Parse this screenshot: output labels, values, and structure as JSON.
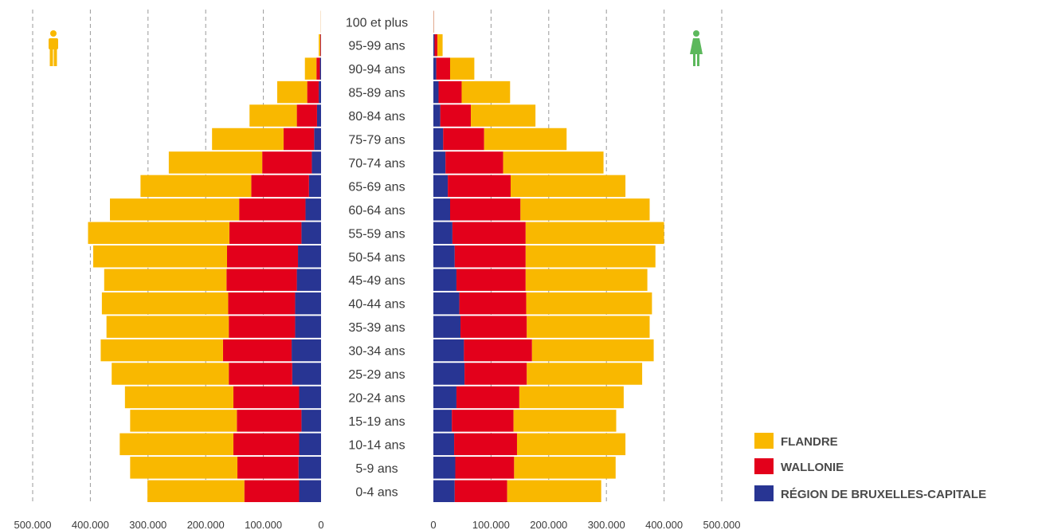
{
  "chart_data": {
    "type": "bar",
    "layout": "population-pyramid",
    "stacked": true,
    "orientation": "horizontal",
    "title": "",
    "categories": [
      "0-4 ans",
      "5-9 ans",
      "10-14 ans",
      "15-19 ans",
      "20-24 ans",
      "25-29 ans",
      "30-34 ans",
      "35-39 ans",
      "40-44 ans",
      "45-49 ans",
      "50-54 ans",
      "55-59 ans",
      "60-64 ans",
      "65-69 ans",
      "70-74 ans",
      "75-79 ans",
      "80-84 ans",
      "85-89 ans",
      "90-94 ans",
      "95-99 ans",
      "100 et plus"
    ],
    "xlim": [
      0,
      500000
    ],
    "x_ticks": [
      0,
      100000,
      200000,
      300000,
      400000,
      500000
    ],
    "x_tick_labels": [
      "0",
      "100.000",
      "200.000",
      "300.000",
      "400.000",
      "500.000"
    ],
    "grid": true,
    "legend_position": "bottom-right",
    "colors": {
      "flandre": "#F9B800",
      "wallonie": "#E3001B",
      "bruxelles": "#283593",
      "grid": "#9a9a9a",
      "text": "#3a3a3a",
      "male_icon": "#F9B800",
      "female_icon": "#5CB85C"
    },
    "icons": {
      "left": "male-person-icon",
      "right": "female-person-icon"
    },
    "series_order": [
      "bruxelles",
      "wallonie",
      "flandre"
    ],
    "legend": [
      {
        "key": "flandre",
        "label": "FLANDRE"
      },
      {
        "key": "wallonie",
        "label": "WALLONIE"
      },
      {
        "key": "bruxelles",
        "label": "RÉGION DE BRUXELLES-CAPITALE"
      }
    ],
    "sides": [
      {
        "name": "",
        "side": "left",
        "series": [
          {
            "key": "bruxelles",
            "values": [
              38000,
              39000,
              38000,
              34000,
              38000,
              50000,
              51000,
              45000,
              45000,
              42000,
              40000,
              34000,
              27000,
              21000,
              16000,
              12000,
              7000,
              4000,
              2000,
              500,
              50
            ]
          },
          {
            "key": "wallonie",
            "values": [
              95000,
              106000,
              114000,
              112000,
              114000,
              110000,
              119000,
              115000,
              116000,
              122000,
              123000,
              125000,
              115000,
              100000,
              86000,
              53000,
              35000,
              20000,
              6000,
              1000,
              100
            ]
          },
          {
            "key": "flandre",
            "values": [
              168000,
              186000,
              197000,
              185000,
              188000,
              203000,
              212000,
              212000,
              219000,
              212000,
              232000,
              245000,
              224000,
              192000,
              162000,
              124000,
              82000,
              52000,
              20000,
              2500,
              200
            ]
          }
        ]
      },
      {
        "name": "",
        "side": "right",
        "series": [
          {
            "key": "bruxelles",
            "values": [
              37000,
              38000,
              36000,
              32000,
              40000,
              54000,
              53000,
              47000,
              45000,
              40000,
              37000,
              33000,
              29000,
              25000,
              21000,
              17000,
              12000,
              9000,
              5000,
              2000,
              300
            ]
          },
          {
            "key": "wallonie",
            "values": [
              91000,
              102000,
              109000,
              107000,
              109000,
              108000,
              118000,
              115000,
              116000,
              120000,
              123000,
              127000,
              122000,
              109000,
              100000,
              71000,
              53000,
              40000,
              24000,
              5000,
              300
            ]
          },
          {
            "key": "flandre",
            "values": [
              163000,
              176000,
              188000,
              178000,
              181000,
              200000,
              211000,
              213000,
              218000,
              211000,
              225000,
              240000,
              224000,
              199000,
              174000,
              143000,
              112000,
              84000,
              42000,
              9000,
              300
            ]
          }
        ]
      }
    ]
  }
}
